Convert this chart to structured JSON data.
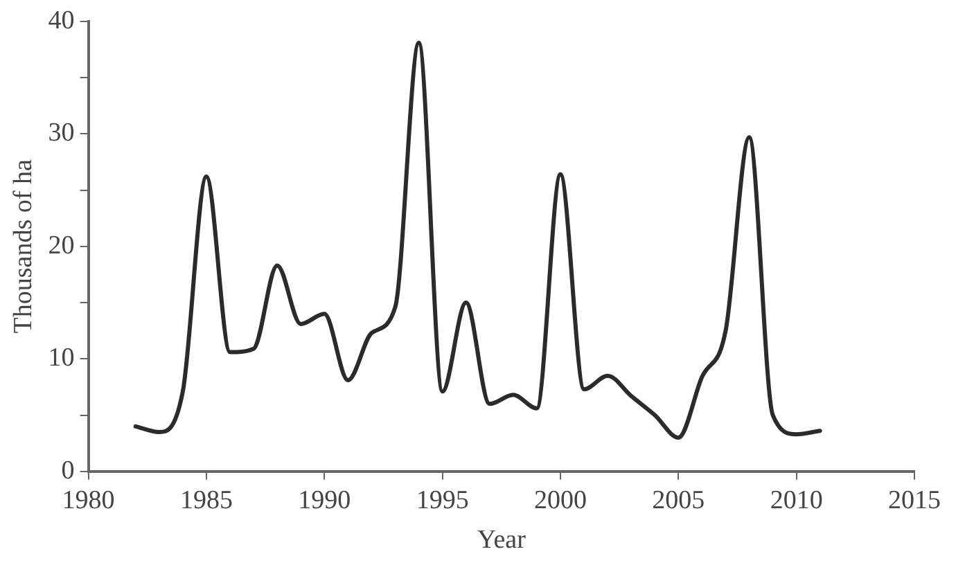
{
  "chart_data": {
    "type": "line",
    "xlabel": "Year",
    "ylabel": "Thousands of ha",
    "x": [
      1982,
      1983,
      1984,
      1985,
      1986,
      1987,
      1988,
      1989,
      1990,
      1991,
      1992,
      1993,
      1994,
      1995,
      1996,
      1997,
      1998,
      1999,
      2000,
      2001,
      2002,
      2003,
      2004,
      2005,
      2006,
      2007,
      2008,
      2009,
      2010,
      2011
    ],
    "series": [
      {
        "color": "#2b2b2b",
        "values": [
          4.0,
          3.5,
          7.1,
          26.2,
          10.6,
          10.9,
          18.3,
          13.1,
          14,
          8.1,
          12.3,
          14.6,
          38.1,
          7.1,
          15,
          6.0,
          6.8,
          5.6,
          26.4,
          7.3,
          8.5,
          6.7,
          5.0,
          3.0,
          8.4,
          12.5,
          29.7,
          5.0,
          3.3,
          3.6
        ]
      }
    ],
    "xlim": [
      1980,
      2015
    ],
    "xticks": [
      1980,
      1985,
      1990,
      1995,
      2000,
      2005,
      2010,
      2015
    ],
    "ylim": [
      0,
      40
    ],
    "yticks": [
      0,
      {
        "value": 5,
        "label": null
      },
      10,
      {
        "value": 15,
        "label": null
      },
      20,
      {
        "value": 25,
        "label": null
      },
      30,
      {
        "value": 35,
        "label": null
      },
      40
    ],
    "grid": false,
    "legend": false,
    "marker": "none",
    "line_style": "solid"
  }
}
